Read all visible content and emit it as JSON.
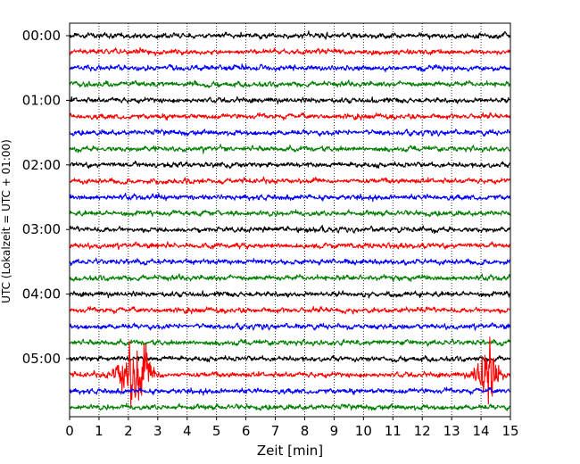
{
  "chart_data": {
    "type": "line",
    "title": "",
    "xlabel": "Zeit  [min]",
    "ylabel": "UTC (Lokalzeit = UTC + 01:00)",
    "xlim": [
      0,
      15
    ],
    "x_ticks": [
      "0",
      "1",
      "2",
      "3",
      "4",
      "5",
      "6",
      "7",
      "8",
      "9",
      "10",
      "11",
      "12",
      "13",
      "14",
      "15"
    ],
    "y_tick_labels": [
      "00:00",
      "01:00",
      "02:00",
      "03:00",
      "04:00",
      "05:00"
    ],
    "grid": "vertical-dotted",
    "trace_colors": [
      "#000000",
      "#ff0000",
      "#0000ff",
      "#007f00"
    ],
    "trace_start_times": [
      "00:00",
      "00:15",
      "00:30",
      "00:45",
      "01:00",
      "01:15",
      "01:30",
      "01:45",
      "02:00",
      "02:15",
      "02:30",
      "02:45",
      "03:00",
      "03:15",
      "03:30",
      "03:45",
      "04:00",
      "04:15",
      "04:30",
      "04:45",
      "05:00",
      "05:15",
      "05:30",
      "05:45"
    ],
    "events": [
      {
        "trace": "05:15",
        "center_min": 2.2,
        "width_min": 1.5,
        "peak_amplitude_rel": 14
      },
      {
        "trace": "05:15",
        "center_min": 14.2,
        "width_min": 1.0,
        "peak_amplitude_rel": 13
      }
    ]
  }
}
